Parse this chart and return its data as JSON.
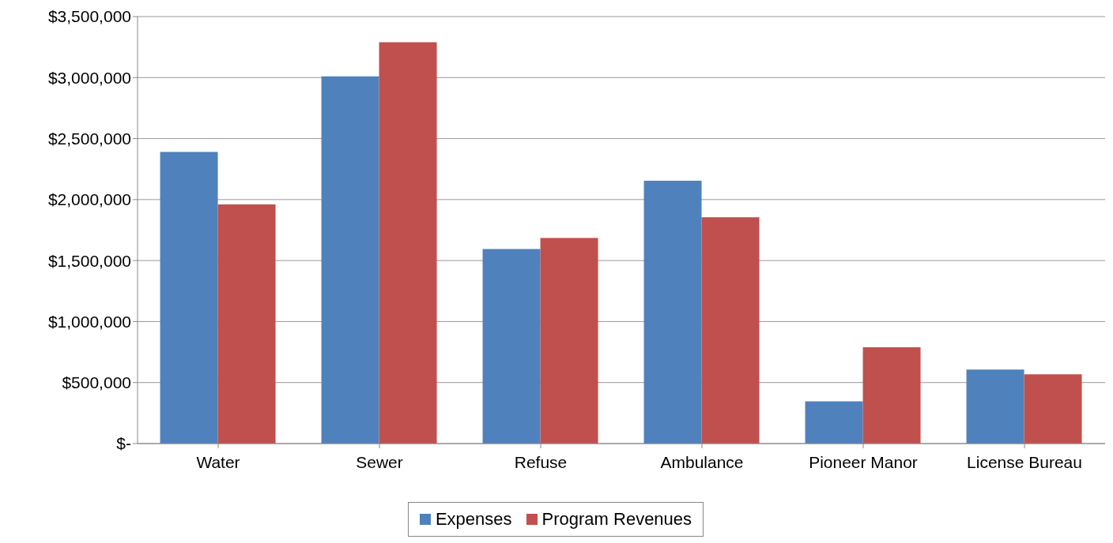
{
  "chart_data": {
    "type": "bar",
    "categories": [
      "Water",
      "Sewer",
      "Refuse",
      "Ambulance",
      "Pioneer Manor",
      "License Bureau"
    ],
    "series": [
      {
        "name": "Expenses",
        "color": "#4f81bd",
        "values": [
          2390000,
          3010000,
          1595000,
          2155000,
          346000,
          607000
        ]
      },
      {
        "name": "Program Revenues",
        "color": "#c0504d",
        "values": [
          1960000,
          3290000,
          1685000,
          1855000,
          790000,
          568000
        ]
      }
    ],
    "ylim": [
      0,
      3500000
    ],
    "yticks": [
      {
        "value": 0,
        "label": "$-"
      },
      {
        "value": 500000,
        "label": "$500,000"
      },
      {
        "value": 1000000,
        "label": "$1,000,000"
      },
      {
        "value": 1500000,
        "label": "$1,500,000"
      },
      {
        "value": 2000000,
        "label": "$2,000,000"
      },
      {
        "value": 2500000,
        "label": "$2,500,000"
      },
      {
        "value": 3000000,
        "label": "$3,000,000"
      },
      {
        "value": 3500000,
        "label": "$3,500,000"
      }
    ],
    "grid": "y",
    "legend": "bottom"
  }
}
